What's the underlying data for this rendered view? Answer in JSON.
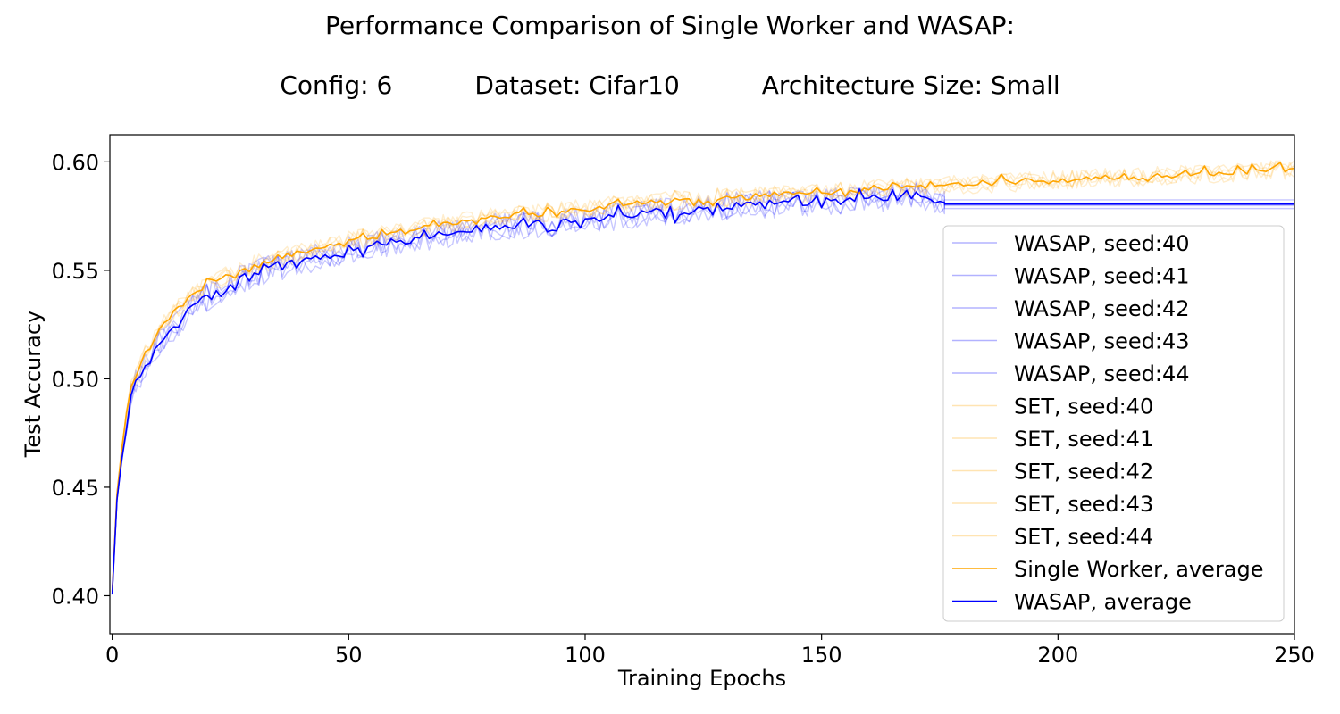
{
  "chart_data": {
    "type": "line",
    "title": "Performance Comparison of Single Worker and WASAP:",
    "subtitle_parts": [
      "Config: 6",
      "Dataset: Cifar10",
      "Architecture Size: Small"
    ],
    "xlabel": "Training Epochs",
    "ylabel": "Test Accuracy",
    "xlim": [
      -0.5,
      250
    ],
    "ylim": [
      0.3825,
      0.6125
    ],
    "xticks": [
      0,
      50,
      100,
      150,
      200,
      250
    ],
    "yticks": [
      0.4,
      0.45,
      0.5,
      0.55,
      0.6
    ],
    "ytick_labels": [
      "0.40",
      "0.45",
      "0.50",
      "0.55",
      "0.60"
    ],
    "grid": false,
    "legend_position": "right",
    "wasap_stop_epoch": 176,
    "colors": {
      "wasap": "#0000ff",
      "single": "#ffa500"
    },
    "series": [
      {
        "name": "WASAP, seed:40",
        "group": "wasap",
        "seed": 40,
        "final": 0.5805,
        "kind": "seed"
      },
      {
        "name": "WASAP, seed:41",
        "group": "wasap",
        "seed": 41,
        "final": 0.5785,
        "kind": "seed"
      },
      {
        "name": "WASAP, seed:42",
        "group": "wasap",
        "seed": 42,
        "final": 0.5825,
        "kind": "seed"
      },
      {
        "name": "WASAP, seed:43",
        "group": "wasap",
        "seed": 43,
        "final": 0.581,
        "kind": "seed"
      },
      {
        "name": "WASAP, seed:44",
        "group": "wasap",
        "seed": 44,
        "final": 0.5798,
        "kind": "seed"
      },
      {
        "name": "SET, seed:40",
        "group": "single",
        "seed": 40,
        "kind": "seed"
      },
      {
        "name": "SET, seed:41",
        "group": "single",
        "seed": 41,
        "kind": "seed"
      },
      {
        "name": "SET, seed:42",
        "group": "single",
        "seed": 42,
        "kind": "seed"
      },
      {
        "name": "SET, seed:43",
        "group": "single",
        "seed": 43,
        "kind": "seed"
      },
      {
        "name": "SET, seed:44",
        "group": "single",
        "seed": 44,
        "kind": "seed"
      },
      {
        "name": "Single Worker, average",
        "group": "single",
        "kind": "average"
      },
      {
        "name": "WASAP, average",
        "group": "wasap",
        "kind": "average",
        "final": 0.5805
      }
    ],
    "single_average_anchors": {
      "x": [
        0,
        1,
        2,
        4,
        6,
        8,
        10,
        13,
        16,
        20,
        25,
        30,
        35,
        40,
        50,
        60,
        70,
        80,
        90,
        100,
        110,
        120,
        130,
        140,
        150,
        160,
        170,
        180,
        190,
        200,
        210,
        220,
        230,
        240,
        250
      ],
      "y": [
        0.4,
        0.448,
        0.466,
        0.495,
        0.507,
        0.515,
        0.522,
        0.53,
        0.536,
        0.542,
        0.548,
        0.552,
        0.555,
        0.558,
        0.563,
        0.567,
        0.571,
        0.574,
        0.576,
        0.578,
        0.58,
        0.582,
        0.583,
        0.584,
        0.585,
        0.587,
        0.588,
        0.589,
        0.59,
        0.591,
        0.592,
        0.593,
        0.594,
        0.595,
        0.596
      ]
    },
    "wasap_average_anchors": {
      "x": [
        0,
        1,
        2,
        4,
        6,
        8,
        10,
        13,
        16,
        20,
        25,
        30,
        35,
        40,
        50,
        60,
        70,
        80,
        90,
        100,
        110,
        120,
        130,
        140,
        150,
        160,
        170,
        176
      ],
      "y": [
        0.4,
        0.446,
        0.463,
        0.493,
        0.503,
        0.511,
        0.517,
        0.524,
        0.531,
        0.538,
        0.544,
        0.549,
        0.552,
        0.555,
        0.56,
        0.564,
        0.567,
        0.57,
        0.572,
        0.574,
        0.576,
        0.578,
        0.58,
        0.581,
        0.582,
        0.583,
        0.586,
        0.5805
      ]
    }
  }
}
